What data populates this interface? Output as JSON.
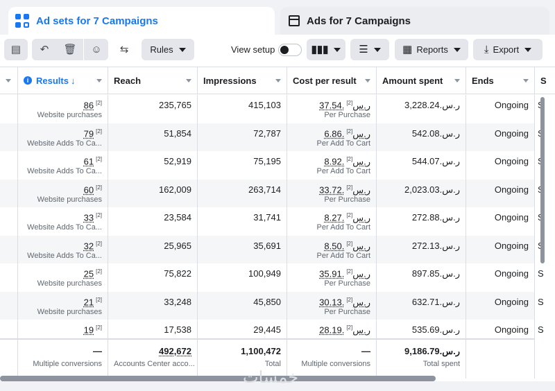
{
  "tabs": [
    {
      "label": "Ad sets for 7 Campaigns",
      "icon": "grid-icon",
      "active": true
    },
    {
      "label": "Ads for 7 Campaigns",
      "icon": "ad-icon",
      "active": false
    }
  ],
  "toolbar": {
    "rules_label": "Rules",
    "view_setup_label": "View setup",
    "reports_label": "Reports",
    "export_label": "Export"
  },
  "columns": {
    "results": "Results",
    "reach": "Reach",
    "impressions": "Impressions",
    "cost_per_result": "Cost per result",
    "amount_spent": "Amount spent",
    "ends": "Ends",
    "next": "S"
  },
  "rows": [
    {
      "results": "86",
      "results_type": "Website purchases",
      "reach": "235,765",
      "impressions": "415,103",
      "cost": "37.54.ر.س",
      "cost_type": "Per Purchase",
      "spent": "3,228.24.ر.س",
      "ends": "Ongoing",
      "next": "Se"
    },
    {
      "results": "79",
      "results_type": "Website Adds To Ca...",
      "reach": "51,854",
      "impressions": "72,787",
      "cost": "6.86.ر.س",
      "cost_type": "Per Add To Cart",
      "spent": "542.08.ر.س",
      "ends": "Ongoing",
      "next": "Se"
    },
    {
      "results": "61",
      "results_type": "Website Adds To Ca...",
      "reach": "52,919",
      "impressions": "75,195",
      "cost": "8.92.ر.س",
      "cost_type": "Per Add To Cart",
      "spent": "544.07.ر.س",
      "ends": "Ongoing",
      "next": "Se"
    },
    {
      "results": "60",
      "results_type": "Website purchases",
      "reach": "162,009",
      "impressions": "263,714",
      "cost": "33.72.ر.س",
      "cost_type": "Per Purchase",
      "spent": "2,023.03.ر.س",
      "ends": "Ongoing",
      "next": "Se"
    },
    {
      "results": "33",
      "results_type": "Website Adds To Ca...",
      "reach": "23,584",
      "impressions": "31,741",
      "cost": "8.27.ر.س",
      "cost_type": "Per Add To Cart",
      "spent": "272.88.ر.س",
      "ends": "Ongoing",
      "next": "Se"
    },
    {
      "results": "32",
      "results_type": "Website Adds To Ca...",
      "reach": "25,965",
      "impressions": "35,691",
      "cost": "8.50.ر.س",
      "cost_type": "Per Add To Cart",
      "spent": "272.13.ر.س",
      "ends": "Ongoing",
      "next": "Se"
    },
    {
      "results": "25",
      "results_type": "Website purchases",
      "reach": "75,822",
      "impressions": "100,949",
      "cost": "35.91.ر.س",
      "cost_type": "Per Purchase",
      "spent": "897.85.ر.س",
      "ends": "Ongoing",
      "next": "Se"
    },
    {
      "results": "21",
      "results_type": "Website purchases",
      "reach": "33,248",
      "impressions": "45,850",
      "cost": "30.13.ر.س",
      "cost_type": "Per Purchase",
      "spent": "632.71.ر.س",
      "ends": "Ongoing",
      "next": "Se"
    },
    {
      "results": "19",
      "results_type": "",
      "reach": "17,538",
      "impressions": "29,445",
      "cost": "28.19.ر.س",
      "cost_type": "",
      "spent": "535.69.ر.س",
      "ends": "Ongoing",
      "next": "Se"
    }
  ],
  "footnote_marker": "[2]",
  "totals": {
    "results": "—",
    "results_sub": "Multiple conversions",
    "reach": "492,672",
    "reach_sub": "Accounts Center acco...",
    "impressions": "1,100,472",
    "impressions_sub": "Total",
    "cost": "—",
    "cost_sub": "Multiple conversions",
    "spent": "9,186.79.ر.س",
    "spent_sub": "Total spent"
  },
  "watermark": "خمسات"
}
